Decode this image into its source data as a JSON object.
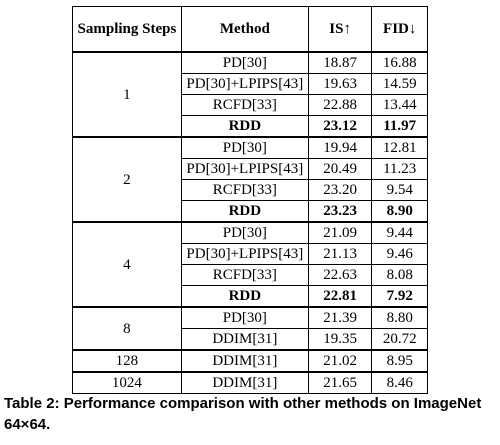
{
  "table": {
    "headers": {
      "steps": "Sampling Steps",
      "method": "Method",
      "is": "IS↑",
      "fid": "FID↓"
    },
    "groups": [
      {
        "steps": "1",
        "rows": [
          {
            "method": "PD[30]",
            "is": "18.87",
            "fid": "16.88",
            "bold": false
          },
          {
            "method": "PD[30]+LPIPS[43]",
            "is": "19.63",
            "fid": "14.59",
            "bold": false
          },
          {
            "method": "RCFD[33]",
            "is": "22.88",
            "fid": "13.44",
            "bold": false
          },
          {
            "method": "RDD",
            "is": "23.12",
            "fid": "11.97",
            "bold": true
          }
        ]
      },
      {
        "steps": "2",
        "rows": [
          {
            "method": "PD[30]",
            "is": "19.94",
            "fid": "12.81",
            "bold": false
          },
          {
            "method": "PD[30]+LPIPS[43]",
            "is": "20.49",
            "fid": "11.23",
            "bold": false
          },
          {
            "method": "RCFD[33]",
            "is": "23.20",
            "fid": "9.54",
            "bold": false
          },
          {
            "method": "RDD",
            "is": "23.23",
            "fid": "8.90",
            "bold": true
          }
        ]
      },
      {
        "steps": "4",
        "rows": [
          {
            "method": "PD[30]",
            "is": "21.09",
            "fid": "9.44",
            "bold": false
          },
          {
            "method": "PD[30]+LPIPS[43]",
            "is": "21.13",
            "fid": "9.46",
            "bold": false
          },
          {
            "method": "RCFD[33]",
            "is": "22.63",
            "fid": "8.08",
            "bold": false
          },
          {
            "method": "RDD",
            "is": "22.81",
            "fid": "7.92",
            "bold": true
          }
        ]
      },
      {
        "steps": "8",
        "rows": [
          {
            "method": "PD[30]",
            "is": "21.39",
            "fid": "8.80",
            "bold": false
          },
          {
            "method": "DDIM[31]",
            "is": "19.35",
            "fid": "20.72",
            "bold": false
          }
        ]
      },
      {
        "steps": "128",
        "rows": [
          {
            "method": "DDIM[31]",
            "is": "21.02",
            "fid": "8.95",
            "bold": false
          }
        ]
      },
      {
        "steps": "1024",
        "rows": [
          {
            "method": "DDIM[31]",
            "is": "21.65",
            "fid": "8.46",
            "bold": false
          }
        ]
      }
    ]
  },
  "caption": "Table 2: Performance comparison with other methods on ImageNet 64×64."
}
